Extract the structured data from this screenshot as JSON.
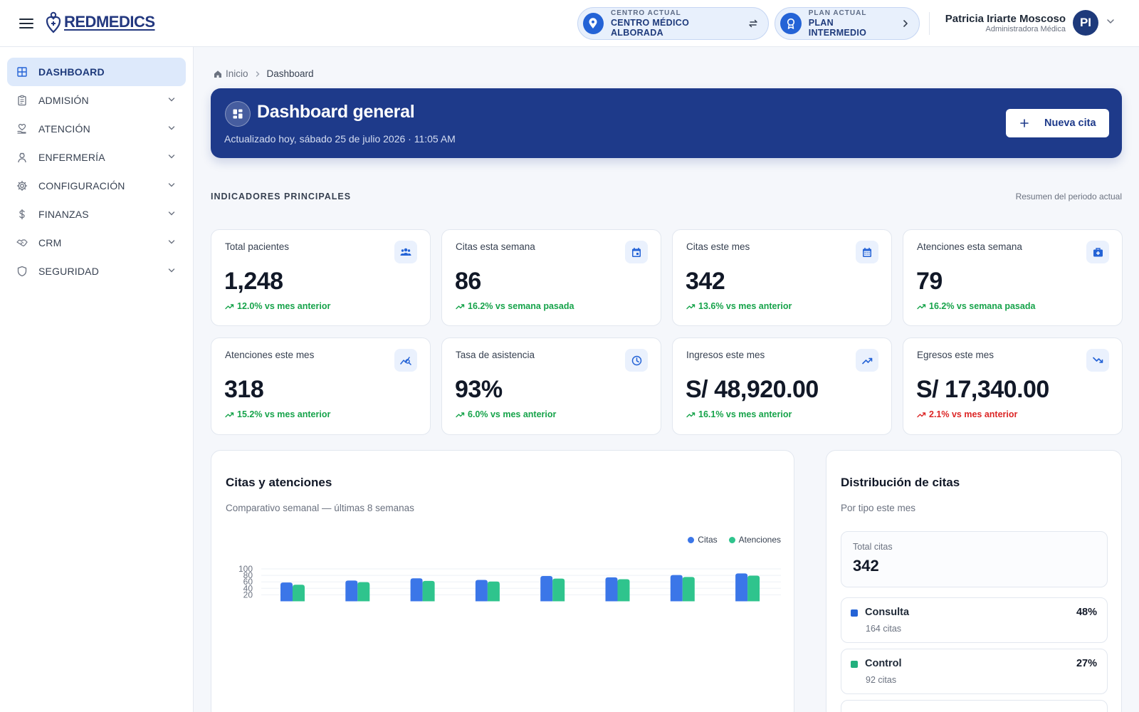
{
  "header": {
    "logo_text": "REDMEDICS",
    "center": {
      "label": "CENTRO ACTUAL",
      "value": "CENTRO MÉDICO ALBORADA"
    },
    "plan": {
      "label": "PLAN ACTUAL",
      "value": "PLAN INTERMEDIO"
    },
    "user": {
      "name": "Patricia Iriarte Moscoso",
      "role": "Administradora Médica",
      "initials": "PI"
    }
  },
  "sidebar": {
    "items": [
      {
        "label": "DASHBOARD",
        "icon": "grid-icon",
        "active": true
      },
      {
        "label": "ADMISIÓN",
        "icon": "clipboard-icon"
      },
      {
        "label": "ATENCIÓN",
        "icon": "heart-hand-icon"
      },
      {
        "label": "ENFERMERÍA",
        "icon": "nurse-icon"
      },
      {
        "label": "CONFIGURACIÓN",
        "icon": "gear-icon"
      },
      {
        "label": "FINANZAS",
        "icon": "dollar-icon"
      },
      {
        "label": "CRM",
        "icon": "handshake-icon"
      },
      {
        "label": "SEGURIDAD",
        "icon": "shield-icon"
      }
    ]
  },
  "breadcrumb": {
    "home": "Inicio",
    "current": "Dashboard"
  },
  "banner": {
    "title": "Dashboard general",
    "subtitle": "Actualizado hoy, sábado 25 de julio 2026 · 11:05 AM",
    "button": "Nueva cita"
  },
  "indicators": {
    "title": "INDICADORES PRINCIPALES",
    "note": "Resumen del periodo actual",
    "kpis": [
      {
        "label": "Total pacientes",
        "value": "1,248",
        "trend": "12.0% vs mes anterior",
        "direction": "up",
        "icon": "users-icon"
      },
      {
        "label": "Citas esta semana",
        "value": "86",
        "trend": "16.2% vs semana pasada",
        "direction": "up",
        "icon": "calendar-day-icon"
      },
      {
        "label": "Citas este mes",
        "value": "342",
        "trend": "13.6% vs mes anterior",
        "direction": "up",
        "icon": "calendar-month-icon"
      },
      {
        "label": "Atenciones esta semana",
        "value": "79",
        "trend": "16.2% vs semana pasada",
        "direction": "up",
        "icon": "medical-bag-icon"
      },
      {
        "label": "Atenciones este mes",
        "value": "318",
        "trend": "15.2% vs mes anterior",
        "direction": "up",
        "icon": "chart-search-icon"
      },
      {
        "label": "Tasa de asistencia",
        "value": "93%",
        "trend": "6.0% vs mes anterior",
        "direction": "up",
        "icon": "clock-icon"
      },
      {
        "label": "Ingresos este mes",
        "value": "S/ 48,920.00",
        "trend": "16.1% vs mes anterior",
        "direction": "up",
        "icon": "trending-up-icon"
      },
      {
        "label": "Egresos este mes",
        "value": "S/ 17,340.00",
        "trend": "2.1% vs mes anterior",
        "direction": "down",
        "icon": "trending-down-icon"
      }
    ]
  },
  "colors": {
    "primary": "#1e3a8a",
    "citas": "#3b76e8",
    "atenciones": "#2fc48d",
    "up": "#16a34a",
    "down": "#dc2626"
  },
  "chart_card": {
    "title": "Citas y atenciones",
    "subtitle": "Comparativo semanal — últimas 8 semanas"
  },
  "chart_data": {
    "type": "bar",
    "categories": [
      "",
      "",
      "",
      "",
      "",
      "",
      "",
      ""
    ],
    "series": [
      {
        "name": "Citas",
        "values": [
          58,
          64,
          71,
          66,
          78,
          74,
          81,
          86
        ]
      },
      {
        "name": "Atenciones",
        "values": [
          51,
          59,
          63,
          61,
          70,
          68,
          75,
          79
        ]
      }
    ],
    "y_ticks": [
      20,
      40,
      60,
      80,
      100
    ],
    "ylim": [
      0,
      100
    ],
    "grid": true,
    "legend": "top-right"
  },
  "distribution": {
    "title": "Distribución de citas",
    "subtitle": "Por tipo este mes",
    "total_label": "Total citas",
    "total_value": "342",
    "items": [
      {
        "name": "Consulta",
        "percent": "48%",
        "count": "164 citas",
        "color": "#2463d6"
      },
      {
        "name": "Control",
        "percent": "27%",
        "count": "92 citas",
        "color": "#22b07d"
      }
    ]
  }
}
